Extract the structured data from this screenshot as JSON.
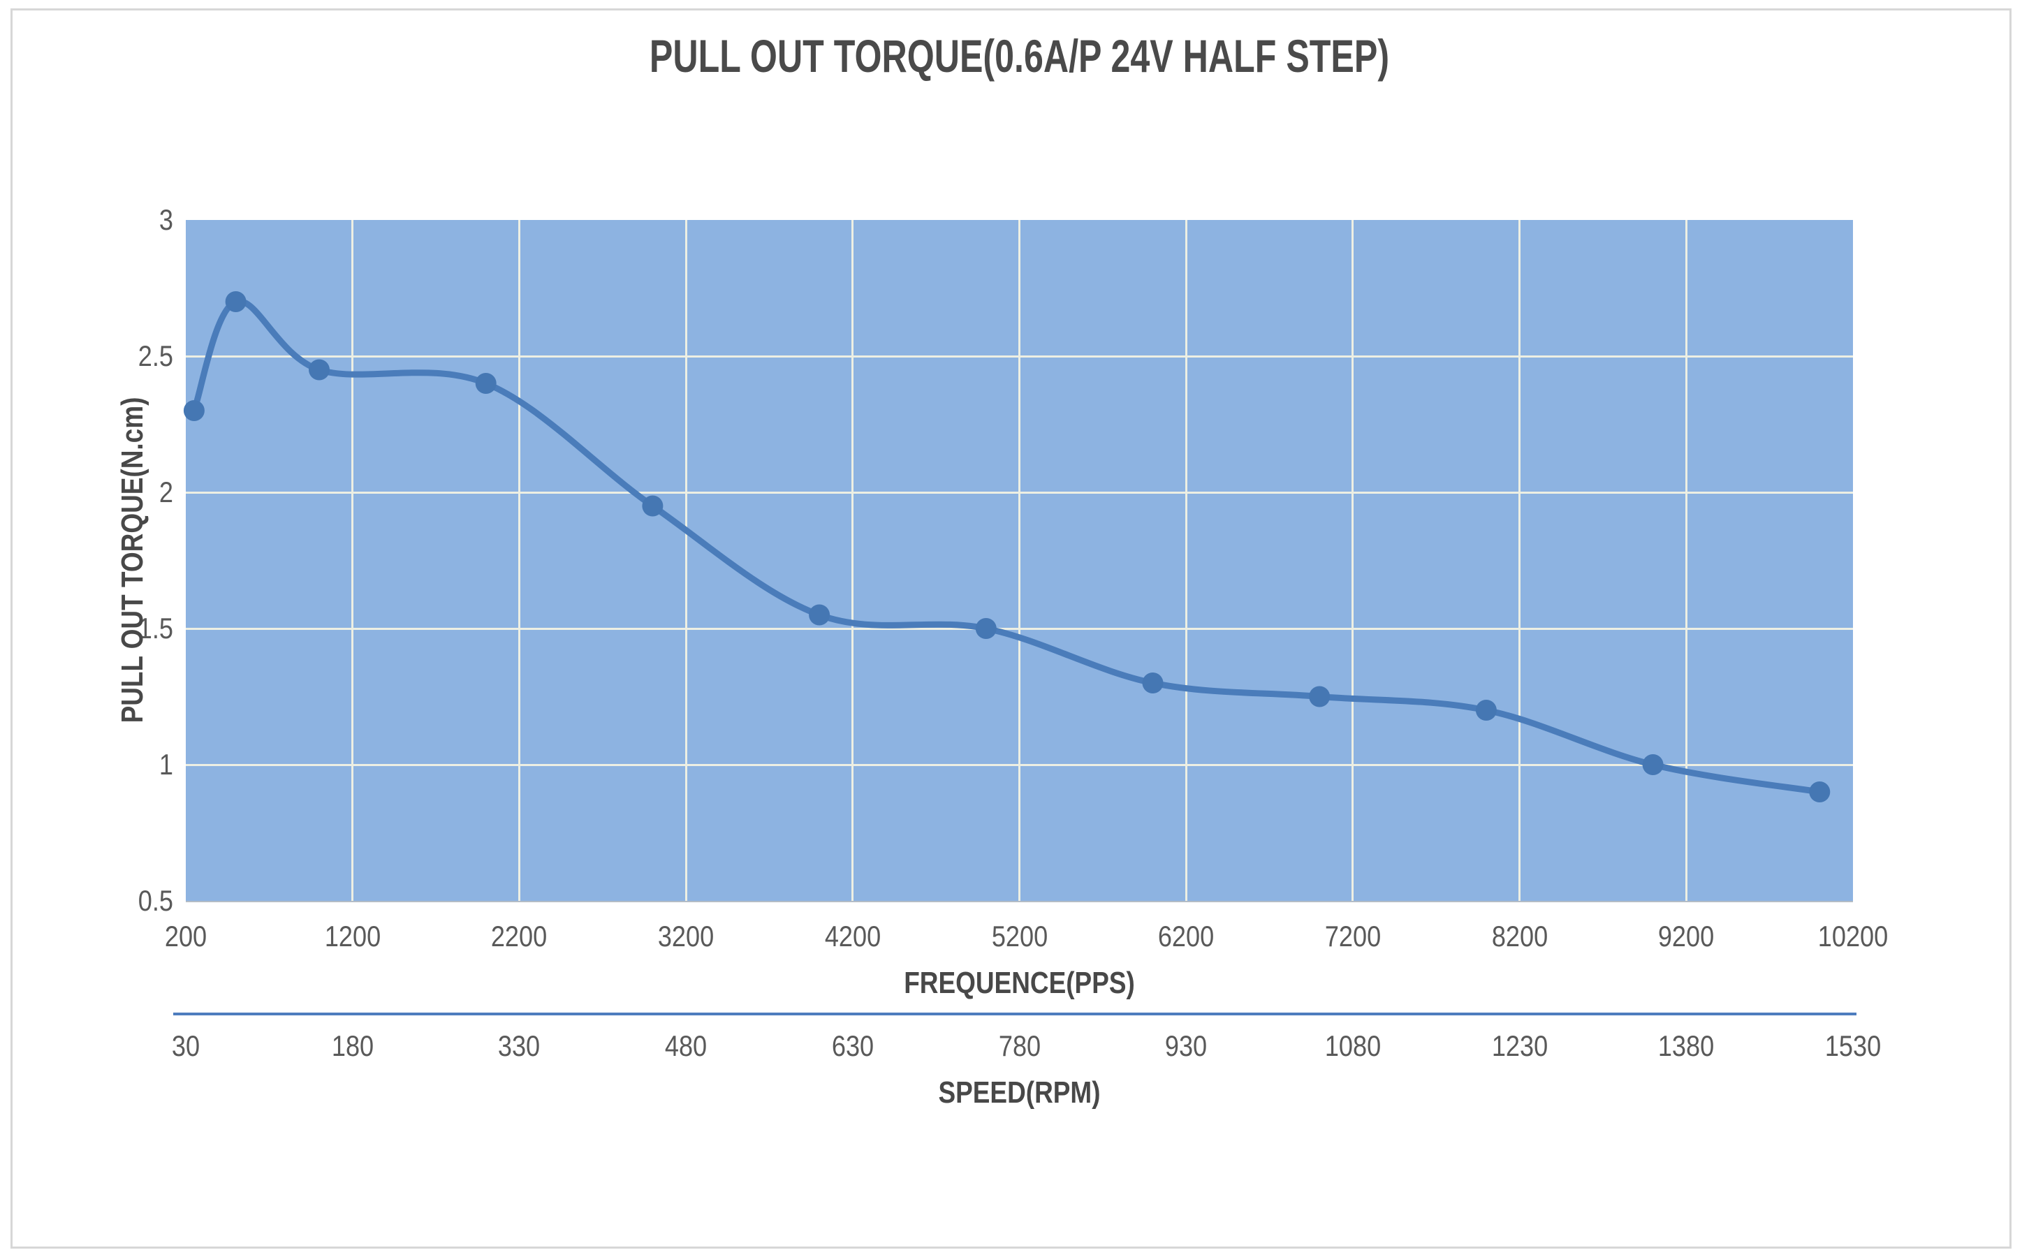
{
  "title": "PULL OUT TORQUE(0.6A/P 24V HALF STEP)",
  "colors": {
    "plot_background": "#8db3e1",
    "line": "#4a7cba",
    "marker": "#4577b3",
    "gridline": "#edefe3",
    "speed_axis_line": "#4e7dbe",
    "tick_text": "#595959",
    "title_text": "#4a4a4a",
    "page_border": "#d7d7d7"
  },
  "chart_data": {
    "type": "line",
    "smooth": true,
    "marker": "circle",
    "title": "PULL OUT TORQUE(0.6A/P 24V HALF STEP)",
    "xlabel": "FREQUENCE(PPS)",
    "ylabel": "PULL OUT TORQUE(N.cm)",
    "x2label": "SPEED(RPM)",
    "xlim": [
      200,
      10200
    ],
    "ylim": [
      0.5,
      3
    ],
    "grid": true,
    "legend": "none",
    "x_ticks": [
      "200",
      "1200",
      "2200",
      "3200",
      "4200",
      "5200",
      "6200",
      "7200",
      "8200",
      "9200",
      "10200"
    ],
    "x_tick_values": [
      200,
      1200,
      2200,
      3200,
      4200,
      5200,
      6200,
      7200,
      8200,
      9200,
      10200
    ],
    "y_ticks": [
      "3",
      "2.5",
      "2",
      "1.5",
      "1",
      "0.5"
    ],
    "y_tick_values": [
      3,
      2.5,
      2,
      1.5,
      1,
      0.5
    ],
    "x2_ticks": [
      "30",
      "180",
      "330",
      "480",
      "630",
      "780",
      "930",
      "1080",
      "1230",
      "1380",
      "1530"
    ],
    "series": [
      {
        "name": "pull out torque",
        "x": [
          250,
          500,
          1000,
          2000,
          3000,
          4000,
          5000,
          6000,
          7000,
          8000,
          9000,
          10000
        ],
        "values": [
          2.3,
          2.7,
          2.45,
          2.4,
          1.95,
          1.55,
          1.5,
          1.3,
          1.25,
          1.2,
          1.0,
          0.9
        ]
      }
    ]
  },
  "x_axis": {
    "title": "FREQUENCE(PPS)"
  },
  "y_axis": {
    "title": "PULL OUT TORQUE(N.cm)"
  },
  "speed_axis": {
    "title": "SPEED(RPM)"
  }
}
